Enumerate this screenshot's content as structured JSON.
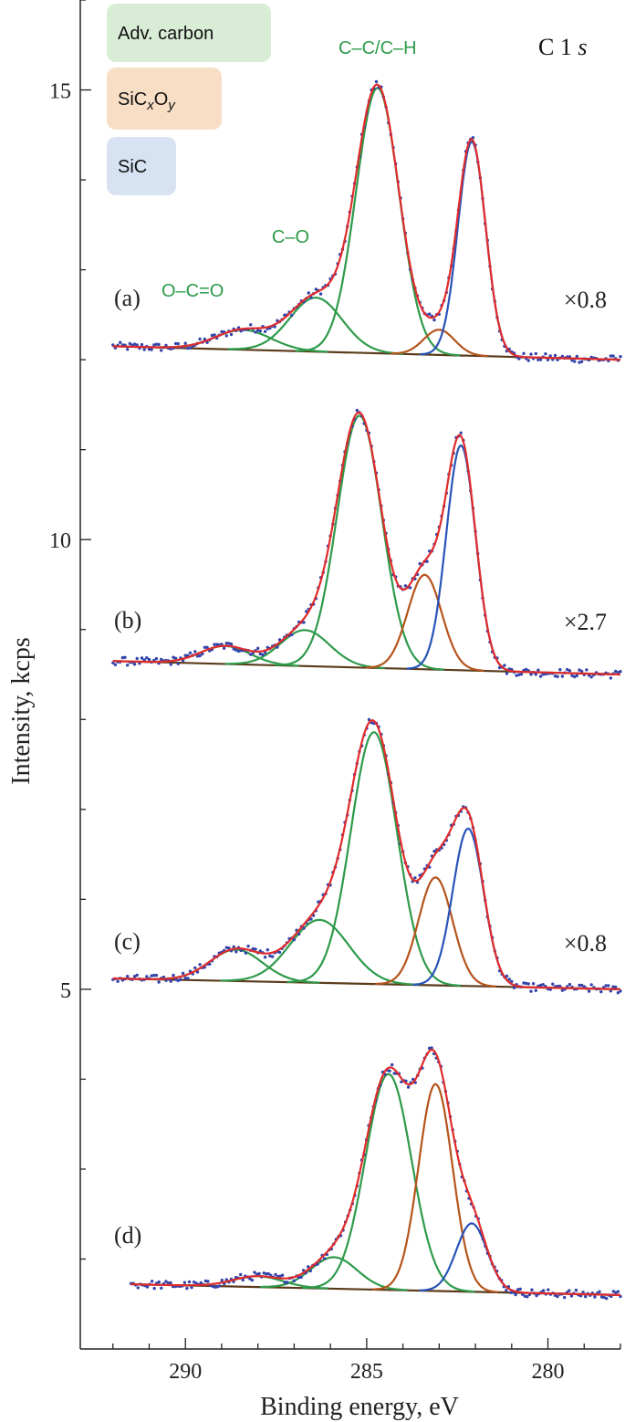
{
  "chart_data": {
    "type": "line",
    "title": "C 1s",
    "xlabel": "Binding energy, eV",
    "ylabel": "Intensity, kcps",
    "x_reversed": true,
    "xlim": [
      292.9,
      278.0
    ],
    "ylim": [
      1.0,
      16.0
    ],
    "x_ticks": [
      290,
      285,
      280
    ],
    "y_ticks": [
      5,
      10,
      15
    ],
    "grid": false,
    "legend": {
      "placement": "top-left",
      "entries": [
        {
          "label": "Adv. carbon",
          "color": "#d9ecd6"
        },
        {
          "label_main": "SiC",
          "label_sub1": "x",
          "label_mid": "O",
          "label_sub2": "y",
          "color": "#f9dec6"
        },
        {
          "label": "SiC",
          "color": "#d7e2f3"
        }
      ]
    },
    "series_colors": {
      "data": "#3344aa",
      "envelope": "#e02b2b",
      "adv_carbon": "#2e9a4a",
      "sicxoy": "#b5541c",
      "sic": "#2854b8",
      "background": "#5a3a1a"
    },
    "peak_labels": [
      {
        "text": "C–C/C–H",
        "x": 284.7,
        "y": 15.4
      },
      {
        "text": "C–O",
        "x": 287.1,
        "y": 13.3
      },
      {
        "text": "O–C=O",
        "x": 289.8,
        "y": 12.7
      }
    ],
    "panels": [
      {
        "label": "(a)",
        "scale": "×0.8",
        "baseline": [
          {
            "x": 292.0,
            "y": 12.15
          },
          {
            "x": 278.0,
            "y": 12.0
          }
        ],
        "components": [
          {
            "group": "adv_carbon",
            "center": 288.4,
            "fwhm": 1.8,
            "height": 0.22
          },
          {
            "group": "adv_carbon",
            "center": 286.4,
            "fwhm": 1.7,
            "height": 0.6
          },
          {
            "group": "adv_carbon",
            "center": 284.7,
            "fwhm": 1.4,
            "height": 2.95
          },
          {
            "group": "sicxoy",
            "center": 283.0,
            "fwhm": 1.0,
            "height": 0.28
          },
          {
            "group": "sic",
            "center": 282.1,
            "fwhm": 0.9,
            "height": 2.38
          }
        ]
      },
      {
        "label": "(b)",
        "scale": "×2.7",
        "baseline": [
          {
            "x": 292.0,
            "y": 8.65
          },
          {
            "x": 278.0,
            "y": 8.5
          }
        ],
        "components": [
          {
            "group": "adv_carbon",
            "center": 288.9,
            "fwhm": 1.6,
            "height": 0.2
          },
          {
            "group": "adv_carbon",
            "center": 286.7,
            "fwhm": 1.6,
            "height": 0.4
          },
          {
            "group": "adv_carbon",
            "center": 285.2,
            "fwhm": 1.45,
            "height": 2.8
          },
          {
            "group": "sicxoy",
            "center": 283.4,
            "fwhm": 1.1,
            "height": 1.05
          },
          {
            "group": "sic",
            "center": 282.4,
            "fwhm": 0.95,
            "height": 2.5
          }
        ]
      },
      {
        "label": "(c)",
        "scale": "×0.8",
        "baseline": [
          {
            "x": 292.0,
            "y": 5.12
          },
          {
            "x": 278.0,
            "y": 5.0
          }
        ],
        "components": [
          {
            "group": "adv_carbon",
            "center": 288.6,
            "fwhm": 1.7,
            "height": 0.35
          },
          {
            "group": "adv_carbon",
            "center": 286.3,
            "fwhm": 1.9,
            "height": 0.7
          },
          {
            "group": "adv_carbon",
            "center": 284.8,
            "fwhm": 1.5,
            "height": 2.8
          },
          {
            "group": "sicxoy",
            "center": 283.1,
            "fwhm": 1.1,
            "height": 1.2
          },
          {
            "group": "sic",
            "center": 282.2,
            "fwhm": 1.0,
            "height": 1.75
          }
        ]
      },
      {
        "label": "(d)",
        "scale": "",
        "baseline": [
          {
            "x": 291.5,
            "y": 1.72
          },
          {
            "x": 278.0,
            "y": 1.6
          }
        ],
        "components": [
          {
            "group": "adv_carbon",
            "center": 288.0,
            "fwhm": 1.6,
            "height": 0.12
          },
          {
            "group": "adv_carbon",
            "center": 285.9,
            "fwhm": 1.5,
            "height": 0.35
          },
          {
            "group": "adv_carbon",
            "center": 284.4,
            "fwhm": 1.5,
            "height": 2.4
          },
          {
            "group": "sicxoy",
            "center": 283.1,
            "fwhm": 1.1,
            "height": 2.3
          },
          {
            "group": "sic",
            "center": 282.1,
            "fwhm": 1.0,
            "height": 0.76
          }
        ]
      }
    ]
  }
}
